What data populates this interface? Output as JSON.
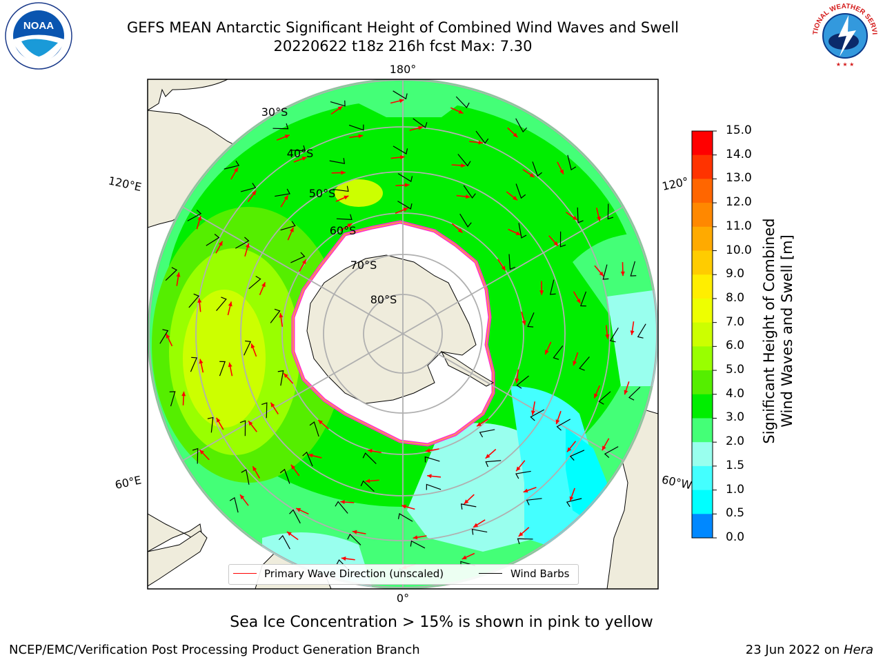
{
  "header": {
    "title_line1": "GEFS MEAN Antarctic Significant Height of Combined Wind Waves and Swell",
    "title_line2": "20220622 t18z 216h fcst   Max: 7.30"
  },
  "logos": {
    "left": {
      "name": "noaa-logo",
      "text": "NOAA",
      "ring_text": "NATIONAL OCEANIC AND ATMOSPHERIC ADMINISTRATION · U.S. DEPARTMENT OF COMMERCE"
    },
    "right": {
      "name": "nws-logo",
      "ring_text": "NATIONAL WEATHER SERVICE"
    }
  },
  "map": {
    "projection": "south-polar-stereographic",
    "longitude_labels": [
      "180°",
      "120°E",
      "120°",
      "60°E",
      "60°W",
      "0°"
    ],
    "latitude_labels": [
      "30°S",
      "40°S",
      "50°S",
      "60°S",
      "70°S",
      "80°S"
    ],
    "colors": {
      "land": "#efecdc",
      "ice": "#ffffff",
      "ice_edge": [
        "#ff33cc",
        "#ffaa33"
      ],
      "gridlines": "#b0b0b0"
    }
  },
  "legend": {
    "items": [
      {
        "label": "Primary Wave Direction (unscaled)",
        "color": "#ff0000"
      },
      {
        "label": "Wind Barbs",
        "color": "#000000"
      }
    ]
  },
  "colorbar": {
    "title": "Significant Height of Combined\nWind Waves and Swell [m]",
    "title_line1": "Significant Height of Combined",
    "title_line2": "Wind Waves and Swell [m]",
    "ticks": [
      "15.0",
      "14.0",
      "13.0",
      "12.0",
      "11.0",
      "10.0",
      "9.0",
      "8.0",
      "7.0",
      "6.0",
      "5.0",
      "4.0",
      "3.0",
      "2.0",
      "1.5",
      "1.0",
      "0.5",
      "0.0"
    ],
    "colors": [
      "#ff0000",
      "#ff3300",
      "#ff6600",
      "#ff8800",
      "#ffaa00",
      "#ffcc00",
      "#ffee00",
      "#eeff00",
      "#ccff00",
      "#99ff00",
      "#55ee00",
      "#00ee00",
      "#44ff77",
      "#99ffee",
      "#44ffff",
      "#00ffff",
      "#0088ff",
      "#0000ff"
    ]
  },
  "notes": {
    "sea_ice": "Sea Ice Concentration > 15% is shown in pink to yellow"
  },
  "footer": {
    "left": "NCEP/EMC/Verification Post Processing Product Generation Branch",
    "date": "23 Jun 2022 on ",
    "machine": "Hera"
  }
}
